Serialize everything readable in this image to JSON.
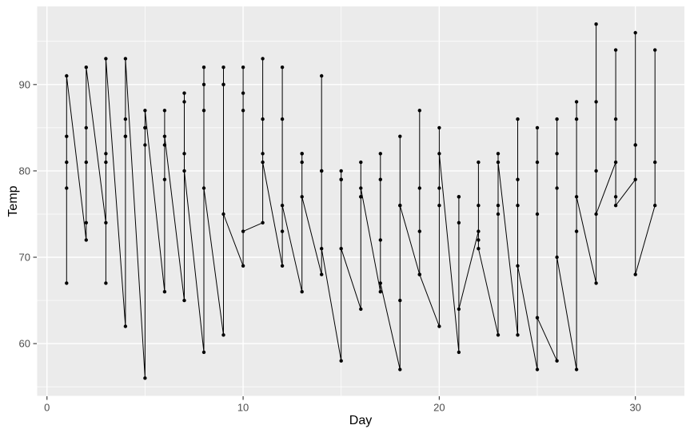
{
  "chart_data": {
    "type": "line",
    "show_points": true,
    "title": "",
    "xlabel": "Day",
    "ylabel": "Temp",
    "xlim": [
      -0.5,
      32.5
    ],
    "ylim": [
      53.95,
      99.05
    ],
    "x_ticks": [
      0,
      10,
      20,
      30
    ],
    "y_ticks": [
      60,
      70,
      80,
      90
    ],
    "x_minor_ticks": [
      5,
      15,
      25
    ],
    "y_minor_ticks": [
      55,
      65,
      75,
      85,
      95
    ],
    "grid": true,
    "legend_position": "none",
    "line_order_note": "single line path sorted by day; multiple temps per day connected vertically in listed order",
    "style": {
      "figure_bg": "#FFFFFF",
      "panel_bg": "#EBEBEB",
      "grid_major": "#FFFFFF",
      "grid_minor": "#FFFFFF",
      "line_color": "#000000",
      "point_color": "#000000",
      "tick_mark_color": "#333333",
      "tick_label_color": "#4D4D4D",
      "axis_title_color": "#000000"
    },
    "points_by_day": [
      {
        "day": 1,
        "temps": [
          67,
          78,
          84,
          81,
          91
        ]
      },
      {
        "day": 2,
        "temps": [
          72,
          74,
          85,
          81,
          92
        ]
      },
      {
        "day": 3,
        "temps": [
          74,
          67,
          81,
          82,
          93
        ]
      },
      {
        "day": 4,
        "temps": [
          62,
          84,
          84,
          86,
          93
        ]
      },
      {
        "day": 5,
        "temps": [
          56,
          85,
          83,
          85,
          87
        ]
      },
      {
        "day": 6,
        "temps": [
          66,
          79,
          83,
          87,
          84
        ]
      },
      {
        "day": 7,
        "temps": [
          65,
          82,
          88,
          89,
          80
        ]
      },
      {
        "day": 8,
        "temps": [
          59,
          87,
          92,
          90,
          78
        ]
      },
      {
        "day": 9,
        "temps": [
          61,
          90,
          92,
          90,
          75
        ]
      },
      {
        "day": 10,
        "temps": [
          69,
          87,
          89,
          92,
          73
        ]
      },
      {
        "day": 11,
        "temps": [
          74,
          93,
          82,
          86,
          81
        ]
      },
      {
        "day": 12,
        "temps": [
          69,
          92,
          73,
          86,
          76
        ]
      },
      {
        "day": 13,
        "temps": [
          66,
          82,
          81,
          82,
          77
        ]
      },
      {
        "day": 14,
        "temps": [
          68,
          80,
          91,
          80,
          71
        ]
      },
      {
        "day": 15,
        "temps": [
          58,
          79,
          80,
          79,
          71
        ]
      },
      {
        "day": 16,
        "temps": [
          64,
          77,
          81,
          77,
          78
        ]
      },
      {
        "day": 17,
        "temps": [
          66,
          72,
          82,
          79,
          67
        ]
      },
      {
        "day": 18,
        "temps": [
          57,
          65,
          84,
          76,
          76
        ]
      },
      {
        "day": 19,
        "temps": [
          68,
          73,
          87,
          78,
          68
        ]
      },
      {
        "day": 20,
        "temps": [
          62,
          76,
          85,
          78,
          82
        ]
      },
      {
        "day": 21,
        "temps": [
          59,
          77,
          74,
          77,
          64
        ]
      },
      {
        "day": 22,
        "temps": [
          73,
          76,
          81,
          72,
          71
        ]
      },
      {
        "day": 23,
        "temps": [
          61,
          76,
          82,
          75,
          81
        ]
      },
      {
        "day": 24,
        "temps": [
          61,
          76,
          86,
          79,
          69
        ]
      },
      {
        "day": 25,
        "temps": [
          57,
          75,
          85,
          81,
          63
        ]
      },
      {
        "day": 26,
        "temps": [
          58,
          78,
          82,
          86,
          70
        ]
      },
      {
        "day": 27,
        "temps": [
          57,
          73,
          86,
          88,
          77
        ]
      },
      {
        "day": 28,
        "temps": [
          67,
          80,
          88,
          97,
          75
        ]
      },
      {
        "day": 29,
        "temps": [
          81,
          77,
          86,
          94,
          76
        ]
      },
      {
        "day": 30,
        "temps": [
          79,
          83,
          83,
          96,
          68
        ]
      },
      {
        "day": 31,
        "temps": [
          76,
          81,
          94
        ]
      }
    ]
  }
}
